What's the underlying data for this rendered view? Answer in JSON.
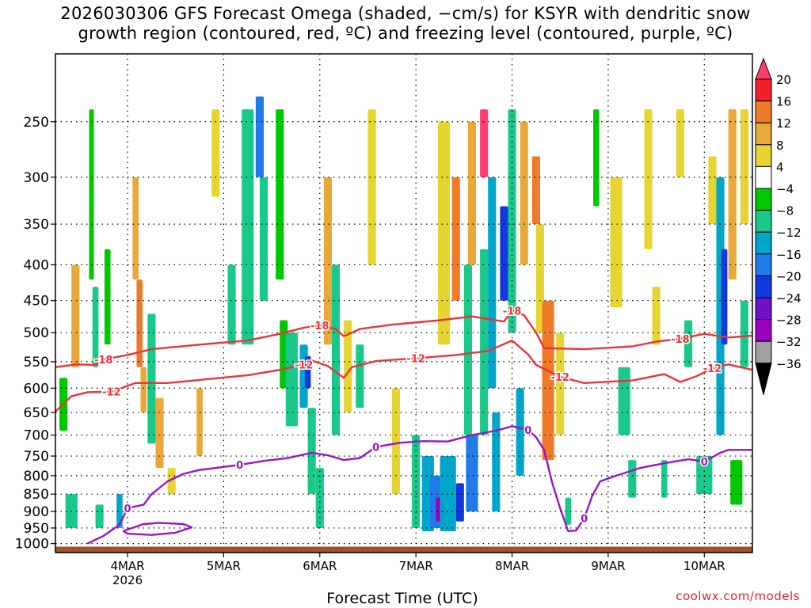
{
  "title_line1": "2026030306 GFS Forecast Omega (shaded, −cm/s) for KSYR with dendritic snow",
  "title_line2": "growth region (contoured, red, ºC) and freezing level (contoured, purple, ºC)",
  "x_axis_title": "Forecast Time (UTC)",
  "credit": "coolwx.com/models",
  "chart_data": {
    "type": "heatmap",
    "title": "2026030306 GFS Forecast Omega (shaded, −cm/s) for KSYR with dendritic snow growth region (contoured, red, ºC) and freezing level (contoured, purple, ºC)",
    "xlabel": "Forecast Time (UTC)",
    "ylabel": "",
    "y_scale": "log-pressure (inverted)",
    "y_ticks": [
      250,
      300,
      350,
      400,
      450,
      500,
      550,
      600,
      650,
      700,
      750,
      800,
      850,
      900,
      950,
      1000
    ],
    "x_range_hours": [
      0,
      174
    ],
    "x_ticks": [
      {
        "label": "4MAR",
        "sublabel": "2026",
        "hour": 18
      },
      {
        "label": "5MAR",
        "sublabel": "",
        "hour": 42
      },
      {
        "label": "6MAR",
        "sublabel": "",
        "hour": 66
      },
      {
        "label": "7MAR",
        "sublabel": "",
        "hour": 90
      },
      {
        "label": "8MAR",
        "sublabel": "",
        "hour": 114
      },
      {
        "label": "9MAR",
        "sublabel": "",
        "hour": 138
      },
      {
        "label": "10MAR",
        "sublabel": "",
        "hour": 162
      }
    ],
    "grid": true,
    "colorbar": {
      "labels": [
        "20",
        "16",
        "12",
        "8",
        "4",
        "−4",
        "−8",
        "−12",
        "−16",
        "−20",
        "−24",
        "−28",
        "−32",
        "−36"
      ],
      "colors": [
        "#ff3e6e",
        "#f0212c",
        "#ef7b28",
        "#e8a93a",
        "#e6d530",
        "#ffffff",
        "#00c800",
        "#18c989",
        "#00a6c8",
        "#1f7be8",
        "#1238e0",
        "#6e10c8",
        "#9a00c0",
        "#a0a0a0"
      ]
    },
    "contours": [
      {
        "color": "#e8353a",
        "level": -18,
        "labels": [
          "-18",
          "-18",
          "-18",
          "-18"
        ],
        "points": [
          [
            0,
            560
          ],
          [
            5,
            555
          ],
          [
            10,
            556
          ],
          [
            12,
            546
          ],
          [
            18,
            538
          ],
          [
            24,
            528
          ],
          [
            36,
            520
          ],
          [
            48,
            513
          ],
          [
            56,
            502
          ],
          [
            62,
            492
          ],
          [
            66,
            488
          ],
          [
            70,
            494
          ],
          [
            72,
            506
          ],
          [
            76,
            494
          ],
          [
            84,
            487
          ],
          [
            96,
            480
          ],
          [
            104,
            474
          ],
          [
            112,
            482
          ],
          [
            114,
            465
          ],
          [
            117,
            472
          ],
          [
            120,
            500
          ],
          [
            122,
            526
          ],
          [
            132,
            528
          ],
          [
            144,
            523
          ],
          [
            150,
            515
          ],
          [
            156,
            510
          ],
          [
            162,
            502
          ],
          [
            168,
            508
          ],
          [
            174,
            505
          ]
        ]
      },
      {
        "color": "#e8353a",
        "level": -12,
        "labels": [
          "-12",
          "-12",
          "-12",
          "-12",
          "-12"
        ],
        "points": [
          [
            0,
            648
          ],
          [
            4,
            616
          ],
          [
            8,
            608
          ],
          [
            14,
            607
          ],
          [
            20,
            590
          ],
          [
            28,
            590
          ],
          [
            36,
            584
          ],
          [
            48,
            575
          ],
          [
            56,
            565
          ],
          [
            62,
            555
          ],
          [
            64,
            548
          ],
          [
            68,
            558
          ],
          [
            72,
            580
          ],
          [
            74,
            560
          ],
          [
            80,
            549
          ],
          [
            90,
            544
          ],
          [
            100,
            538
          ],
          [
            108,
            531
          ],
          [
            114,
            513
          ],
          [
            118,
            537
          ],
          [
            120,
            556
          ],
          [
            126,
            578
          ],
          [
            132,
            590
          ],
          [
            144,
            585
          ],
          [
            152,
            573
          ],
          [
            156,
            588
          ],
          [
            160,
            577
          ],
          [
            164,
            562
          ],
          [
            168,
            555
          ],
          [
            174,
            565
          ]
        ]
      },
      {
        "color": "#9616c8",
        "level": 0,
        "labels": [
          "0",
          "0",
          "0",
          "0",
          "0",
          "0"
        ],
        "points": [
          [
            8,
            1000
          ],
          [
            12,
            975
          ],
          [
            16,
            940
          ],
          [
            18,
            890
          ],
          [
            22,
            880
          ],
          [
            24,
            850
          ],
          [
            28,
            815
          ],
          [
            32,
            795
          ],
          [
            36,
            785
          ],
          [
            40,
            780
          ],
          [
            46,
            772
          ],
          [
            52,
            762
          ],
          [
            58,
            755
          ],
          [
            64,
            742
          ],
          [
            68,
            748
          ],
          [
            72,
            760
          ],
          [
            76,
            755
          ],
          [
            80,
            728
          ],
          [
            86,
            718
          ],
          [
            92,
            714
          ],
          [
            98,
            715
          ],
          [
            104,
            700
          ],
          [
            110,
            690
          ],
          [
            114,
            680
          ],
          [
            118,
            688
          ],
          [
            120,
            705
          ],
          [
            122,
            735
          ],
          [
            124,
            818
          ],
          [
            126,
            890
          ],
          [
            128,
            960
          ],
          [
            130,
            958
          ],
          [
            132,
            920
          ],
          [
            134,
            855
          ],
          [
            136,
            815
          ],
          [
            140,
            800
          ],
          [
            146,
            780
          ],
          [
            152,
            768
          ],
          [
            158,
            758
          ],
          [
            162,
            764
          ],
          [
            166,
            742
          ],
          [
            168,
            735
          ],
          [
            174,
            735
          ]
        ]
      },
      {
        "color": "#9616c8",
        "level": 0,
        "labels": [],
        "points": [
          [
            18,
            955
          ],
          [
            22,
            938
          ],
          [
            26,
            934
          ],
          [
            32,
            938
          ],
          [
            34,
            948
          ],
          [
            30,
            965
          ],
          [
            24,
            972
          ],
          [
            18,
            968
          ],
          [
            17,
            960
          ],
          [
            18,
            955
          ]
        ]
      }
    ],
    "omega_cells": [
      {
        "x": 2,
        "p1": 580,
        "p2": 690,
        "w": 2,
        "v": -6
      },
      {
        "x": 4,
        "p1": 850,
        "p2": 950,
        "w": 3,
        "v": -10
      },
      {
        "x": 5,
        "p1": 400,
        "p2": 560,
        "w": 2,
        "v": 6
      },
      {
        "x": 9,
        "p1": 240,
        "p2": 420,
        "w": 1.2,
        "v": -6
      },
      {
        "x": 10,
        "p1": 430,
        "p2": 560,
        "w": 1.5,
        "v": -8
      },
      {
        "x": 11,
        "p1": 880,
        "p2": 950,
        "w": 2,
        "v": -8
      },
      {
        "x": 13,
        "p1": 380,
        "p2": 520,
        "w": 1.5,
        "v": -6
      },
      {
        "x": 16,
        "p1": 850,
        "p2": 950,
        "w": 1.5,
        "v": -12
      },
      {
        "x": 20,
        "p1": 300,
        "p2": 420,
        "w": 1.5,
        "v": 6
      },
      {
        "x": 21,
        "p1": 420,
        "p2": 560,
        "w": 1.5,
        "v": 10
      },
      {
        "x": 22,
        "p1": 560,
        "p2": 650,
        "w": 1.5,
        "v": 8
      },
      {
        "x": 24,
        "p1": 470,
        "p2": 720,
        "w": 2,
        "v": -7
      },
      {
        "x": 26,
        "p1": 620,
        "p2": 780,
        "w": 2,
        "v": 6
      },
      {
        "x": 29,
        "p1": 780,
        "p2": 850,
        "w": 2,
        "v": 5
      },
      {
        "x": 36,
        "p1": 600,
        "p2": 750,
        "w": 1.5,
        "v": 6
      },
      {
        "x": 40,
        "p1": 240,
        "p2": 320,
        "w": 2,
        "v": 5
      },
      {
        "x": 44,
        "p1": 400,
        "p2": 520,
        "w": 2,
        "v": -7
      },
      {
        "x": 48,
        "p1": 240,
        "p2": 520,
        "w": 3,
        "v": -8
      },
      {
        "x": 51,
        "p1": 230,
        "p2": 300,
        "w": 2,
        "v": -16
      },
      {
        "x": 52,
        "p1": 300,
        "p2": 450,
        "w": 2,
        "v": -10
      },
      {
        "x": 56,
        "p1": 240,
        "p2": 420,
        "w": 2,
        "v": -6
      },
      {
        "x": 57,
        "p1": 480,
        "p2": 600,
        "w": 2,
        "v": -6
      },
      {
        "x": 59,
        "p1": 500,
        "p2": 680,
        "w": 3,
        "v": -10
      },
      {
        "x": 62,
        "p1": 520,
        "p2": 640,
        "w": 2,
        "v": -14
      },
      {
        "x": 63,
        "p1": 540,
        "p2": 600,
        "w": 1.5,
        "v": -22
      },
      {
        "x": 64,
        "p1": 640,
        "p2": 850,
        "w": 2,
        "v": -10
      },
      {
        "x": 66,
        "p1": 780,
        "p2": 950,
        "w": 2,
        "v": -8
      },
      {
        "x": 68,
        "p1": 300,
        "p2": 520,
        "w": 2,
        "v": 6
      },
      {
        "x": 70,
        "p1": 400,
        "p2": 700,
        "w": 2,
        "v": -7
      },
      {
        "x": 73,
        "p1": 480,
        "p2": 650,
        "w": 2,
        "v": 5
      },
      {
        "x": 76,
        "p1": 520,
        "p2": 640,
        "w": 2,
        "v": -10
      },
      {
        "x": 79,
        "p1": 240,
        "p2": 400,
        "w": 2,
        "v": 5
      },
      {
        "x": 85,
        "p1": 600,
        "p2": 850,
        "w": 2,
        "v": 5
      },
      {
        "x": 90,
        "p1": 700,
        "p2": 950,
        "w": 2,
        "v": -8
      },
      {
        "x": 93,
        "p1": 750,
        "p2": 960,
        "w": 3,
        "v": -12
      },
      {
        "x": 95,
        "p1": 800,
        "p2": 950,
        "w": 3,
        "v": -16
      },
      {
        "x": 96,
        "p1": 860,
        "p2": 930,
        "w": 2,
        "v": -28
      },
      {
        "x": 97,
        "p1": 250,
        "p2": 520,
        "w": 3,
        "v": 5
      },
      {
        "x": 98,
        "p1": 750,
        "p2": 960,
        "w": 4,
        "v": -14
      },
      {
        "x": 100,
        "p1": 300,
        "p2": 450,
        "w": 2,
        "v": 10
      },
      {
        "x": 101,
        "p1": 820,
        "p2": 930,
        "w": 2,
        "v": -22
      },
      {
        "x": 103,
        "p1": 400,
        "p2": 700,
        "w": 2,
        "v": -8
      },
      {
        "x": 104,
        "p1": 700,
        "p2": 900,
        "w": 3,
        "v": -18
      },
      {
        "x": 104,
        "p1": 250,
        "p2": 400,
        "w": 2,
        "v": 8
      },
      {
        "x": 107,
        "p1": 240,
        "p2": 300,
        "w": 2,
        "v": 18
      },
      {
        "x": 107,
        "p1": 380,
        "p2": 700,
        "w": 2,
        "v": -10
      },
      {
        "x": 109,
        "p1": 300,
        "p2": 600,
        "w": 2,
        "v": -14
      },
      {
        "x": 110,
        "p1": 650,
        "p2": 900,
        "w": 2,
        "v": -12
      },
      {
        "x": 112,
        "p1": 330,
        "p2": 450,
        "w": 2,
        "v": -20
      },
      {
        "x": 114,
        "p1": 240,
        "p2": 500,
        "w": 2,
        "v": -8
      },
      {
        "x": 116,
        "p1": 600,
        "p2": 800,
        "w": 2,
        "v": -12
      },
      {
        "x": 117,
        "p1": 250,
        "p2": 400,
        "w": 2,
        "v": 6
      },
      {
        "x": 120,
        "p1": 280,
        "p2": 350,
        "w": 2,
        "v": 12
      },
      {
        "x": 121,
        "p1": 350,
        "p2": 500,
        "w": 2,
        "v": 5
      },
      {
        "x": 123,
        "p1": 450,
        "p2": 760,
        "w": 3,
        "v": 10
      },
      {
        "x": 126,
        "p1": 500,
        "p2": 700,
        "w": 2,
        "v": 5
      },
      {
        "x": 128,
        "p1": 860,
        "p2": 940,
        "w": 1.5,
        "v": -8
      },
      {
        "x": 135,
        "p1": 240,
        "p2": 330,
        "w": 1.5,
        "v": -6
      },
      {
        "x": 140,
        "p1": 300,
        "p2": 460,
        "w": 3,
        "v": 5
      },
      {
        "x": 142,
        "p1": 560,
        "p2": 700,
        "w": 3,
        "v": -8
      },
      {
        "x": 144,
        "p1": 760,
        "p2": 860,
        "w": 2,
        "v": -8
      },
      {
        "x": 148,
        "p1": 240,
        "p2": 380,
        "w": 2,
        "v": 5
      },
      {
        "x": 150,
        "p1": 430,
        "p2": 520,
        "w": 2,
        "v": 5
      },
      {
        "x": 152,
        "p1": 760,
        "p2": 860,
        "w": 1.5,
        "v": -8
      },
      {
        "x": 156,
        "p1": 240,
        "p2": 300,
        "w": 2,
        "v": 5
      },
      {
        "x": 158,
        "p1": 480,
        "p2": 560,
        "w": 2,
        "v": -10
      },
      {
        "x": 162,
        "p1": 750,
        "p2": 850,
        "w": 4,
        "v": -10
      },
      {
        "x": 164,
        "p1": 280,
        "p2": 350,
        "w": 2,
        "v": 5
      },
      {
        "x": 166,
        "p1": 300,
        "p2": 700,
        "w": 2,
        "v": -12
      },
      {
        "x": 167,
        "p1": 380,
        "p2": 520,
        "w": 1.5,
        "v": -20
      },
      {
        "x": 169,
        "p1": 240,
        "p2": 420,
        "w": 2,
        "v": 6
      },
      {
        "x": 170,
        "p1": 760,
        "p2": 880,
        "w": 3,
        "v": -6
      },
      {
        "x": 172,
        "p1": 240,
        "p2": 350,
        "w": 2,
        "v": 5
      },
      {
        "x": 172,
        "p1": 450,
        "p2": 560,
        "w": 2,
        "v": -8
      }
    ]
  }
}
